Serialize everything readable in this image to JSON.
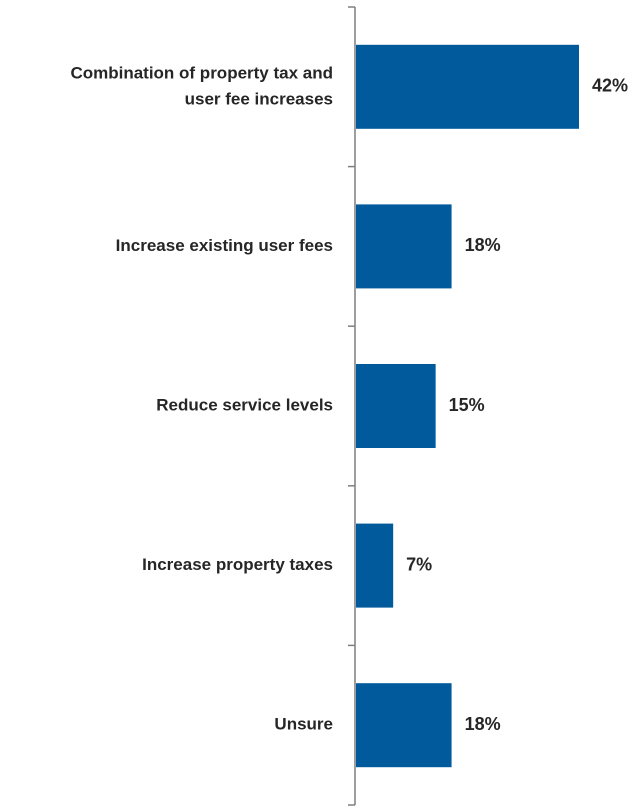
{
  "chart_data": {
    "type": "bar",
    "orientation": "horizontal",
    "categories": [
      "Combination of property tax and user fee increases",
      "Increase existing user fees",
      "Reduce service levels",
      "Increase property taxes",
      "Unsure"
    ],
    "category_lines": [
      [
        "Combination of property tax and",
        "user fee increases"
      ],
      [
        "Increase existing user fees"
      ],
      [
        "Reduce service levels"
      ],
      [
        "Increase property taxes"
      ],
      [
        "Unsure"
      ]
    ],
    "values": [
      42,
      18,
      15,
      7,
      18
    ],
    "value_labels": [
      "42%",
      "18%",
      "15%",
      "7%",
      "18%"
    ],
    "unit": "%",
    "xlim": [
      0,
      42
    ],
    "grid": false,
    "legend": "none",
    "bar_color": "#005a9c",
    "axis_color": "#7f7f7f",
    "text_color": "#262626"
  }
}
